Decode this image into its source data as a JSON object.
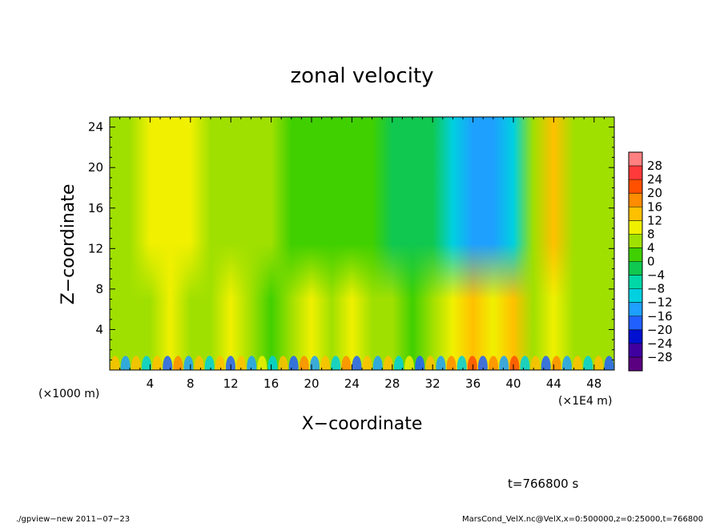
{
  "chart_data": {
    "type": "heatmap",
    "title": "zonal velocity",
    "xlabel": "X−coordinate",
    "ylabel": "Z−coordinate",
    "x_unit_label": "(×1E4 m)",
    "y_unit_label": "(×1000 m)",
    "xlim": [
      0,
      50
    ],
    "ylim": [
      0,
      25
    ],
    "x_ticks": [
      4,
      8,
      12,
      16,
      20,
      24,
      28,
      32,
      36,
      40,
      44,
      48
    ],
    "y_ticks": [
      4,
      8,
      12,
      16,
      20,
      24
    ],
    "colorbar": {
      "levels": [
        28,
        24,
        20,
        16,
        12,
        8,
        4,
        0,
        -4,
        -8,
        -12,
        -16,
        -20,
        -24,
        -28
      ],
      "level_labels": [
        "28",
        "24",
        "20",
        "16",
        "12",
        "8",
        "4",
        "0",
        "−4",
        "−8",
        "−12",
        "−16",
        "−20",
        "−24",
        "−28"
      ],
      "colors": [
        "#ff8080",
        "#ff3a3a",
        "#ff5000",
        "#ff8c00",
        "#ffc000",
        "#f0f000",
        "#a0e000",
        "#40d000",
        "#10c850",
        "#00d8a8",
        "#00d0e0",
        "#1ea0ff",
        "#2060ff",
        "#0010d0",
        "#4000a0",
        "#5a0080"
      ]
    },
    "field_description_columns": {
      "x": [
        0,
        2,
        4,
        6,
        8,
        10,
        12,
        14,
        16,
        18,
        20,
        22,
        24,
        26,
        28,
        30,
        32,
        34,
        36,
        38,
        40,
        42,
        44,
        46,
        48,
        50
      ],
      "upper_value": [
        6,
        7,
        8,
        8,
        11,
        6,
        5,
        6,
        4,
        3,
        2,
        1,
        0,
        0,
        -1,
        -2,
        -4,
        -12,
        -14,
        -13,
        -10,
        4,
        12,
        6,
        4,
        6
      ],
      "lower_value": [
        4,
        6,
        4,
        8,
        6,
        4,
        8,
        6,
        2,
        6,
        8,
        6,
        10,
        4,
        6,
        2,
        6,
        10,
        12,
        8,
        14,
        6,
        10,
        4,
        6,
        4
      ]
    }
  },
  "time_label": "t=766800 s",
  "footer_left": "./gpview−new   2011−07−23",
  "footer_right": "MarsCond_VelX.nc@VelX,x=0:500000,z=0:25000,t=766800"
}
